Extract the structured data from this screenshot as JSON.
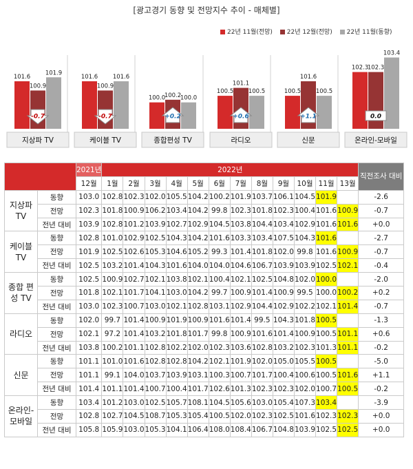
{
  "title": "[광고경기 동향 및 전망지수 추이 - 매체별]",
  "colors": {
    "red": "#d42a2a",
    "darkred": "#963434",
    "gray": "#a8a8a8",
    "highlight": "#ffff00",
    "header": "#d42a2a",
    "side": "#7d7d7d"
  },
  "chart_data": {
    "type": "bar",
    "categories": [
      "지상파 TV",
      "케이블 TV",
      "종합편성 TV",
      "라디오",
      "신문",
      "온라인-모바일"
    ],
    "series": [
      {
        "name": "22년 11월(전망)",
        "values": [
          101.6,
          101.6,
          100.0,
          100.5,
          100.5,
          102.3
        ],
        "labels": [
          "101.6",
          "101.6",
          "100.0",
          "100.5",
          "100.5",
          "102.3"
        ],
        "color": "#d42a2a"
      },
      {
        "name": "22년 12월(전망)",
        "values": [
          100.9,
          100.9,
          100.2,
          101.1,
          101.6,
          102.3
        ],
        "labels": [
          "100.9",
          "100.9",
          "100.2",
          "101.1",
          "101.6",
          "102.3"
        ],
        "color": "#963434"
      },
      {
        "name": "22년 11월(동향)",
        "values": [
          101.9,
          101.6,
          100.0,
          100.5,
          100.5,
          103.4
        ],
        "labels": [
          "101.9",
          "101.6",
          "100.0",
          "100.5",
          "100.5",
          "103.4"
        ],
        "color": "#a8a8a8"
      }
    ],
    "changes": [
      {
        "label": "-0.7",
        "direction": "down"
      },
      {
        "label": "-0.7",
        "direction": "down"
      },
      {
        "label": "+0.2",
        "direction": "up"
      },
      {
        "label": "+0.6",
        "direction": "up"
      },
      {
        "label": "+1.1",
        "direction": "up"
      },
      {
        "label": "0.0",
        "direction": "none"
      }
    ]
  },
  "table": {
    "corner": "",
    "year2021": "2021년",
    "year2022": "2022년",
    "last_header": "직전조사 대비",
    "months": [
      "12월",
      "1월",
      "2월",
      "3월",
      "4월",
      "5월",
      "6월",
      "7월",
      "8월",
      "9월",
      "10월",
      "11월",
      "13월"
    ],
    "groups": [
      {
        "name": "지상파 TV",
        "rows": [
          {
            "label": "동향",
            "values": [
              "103.0",
              "102.8",
              "102.3",
              "102.0",
              "105.5",
              "104.2",
              "100.2",
              "101.9",
              "103.7",
              "106.1",
              "104.5",
              "101.9",
              ""
            ],
            "hl": [
              11
            ],
            "diff": "-2.6"
          },
          {
            "label": "전망",
            "values": [
              "102.3",
              "101.8",
              "100.9",
              "106.2",
              "103.4",
              "104.2",
              "99.8",
              "102.3",
              "101.8",
              "102.3",
              "100.4",
              "101.6",
              "100.9"
            ],
            "hl": [
              12
            ],
            "diff": "-0.7"
          },
          {
            "label": "전년 대비",
            "values": [
              "103.9",
              "102.8",
              "101.2",
              "103.9",
              "102.7",
              "102.9",
              "104.5",
              "103.8",
              "104.4",
              "103.4",
              "102.9",
              "101.6",
              "101.6"
            ],
            "hl": [
              12
            ],
            "diff": "+0.0"
          }
        ]
      },
      {
        "name": "케이블 TV",
        "rows": [
          {
            "label": "동향",
            "values": [
              "102.8",
              "101.0",
              "102.9",
              "102.5",
              "104.3",
              "104.2",
              "101.6",
              "103.3",
              "103.4",
              "107.5",
              "104.3",
              "101.6",
              ""
            ],
            "hl": [
              11
            ],
            "diff": "-2.7"
          },
          {
            "label": "전망",
            "values": [
              "101.9",
              "102.5",
              "102.6",
              "105.3",
              "104.6",
              "105.2",
              "99.3",
              "101.4",
              "101.8",
              "102.0",
              "99.8",
              "101.6",
              "100.9"
            ],
            "hl": [
              12
            ],
            "diff": "-0.7"
          },
          {
            "label": "전년 대비",
            "values": [
              "102.5",
              "103.2",
              "101.4",
              "104.3",
              "101.6",
              "104.0",
              "104.0",
              "104.6",
              "106.7",
              "103.9",
              "103.9",
              "102.5",
              "102.1"
            ],
            "hl": [
              12
            ],
            "diff": "-0.4"
          }
        ]
      },
      {
        "name": "종합 편성 TV",
        "rows": [
          {
            "label": "동향",
            "values": [
              "102.5",
              "100.9",
              "102.7",
              "102.1",
              "103.8",
              "102.1",
              "100.4",
              "102.1",
              "102.5",
              "104.8",
              "102.0",
              "100.0",
              ""
            ],
            "hl": [
              11
            ],
            "diff": "-2.0"
          },
          {
            "label": "전망",
            "values": [
              "101.8",
              "102.1",
              "101.7",
              "104.1",
              "103.0",
              "104.2",
              "99.7",
              "100.9",
              "101.4",
              "100.9",
              "99.5",
              "100.0",
              "100.2"
            ],
            "hl": [
              12
            ],
            "diff": "+0.2"
          },
          {
            "label": "전년 대비",
            "values": [
              "103.0",
              "102.3",
              "100.7",
              "103.0",
              "102.1",
              "102.8",
              "103.1",
              "102.9",
              "104.4",
              "102.9",
              "102.2",
              "102.1",
              "101.4"
            ],
            "hl": [
              12
            ],
            "diff": "-0.7"
          }
        ]
      },
      {
        "name": "라디오",
        "rows": [
          {
            "label": "동향",
            "values": [
              "102.0",
              "99.7",
              "101.4",
              "100.9",
              "101.9",
              "100.9",
              "101.6",
              "101.4",
              "99.5",
              "104.3",
              "101.8",
              "100.5",
              ""
            ],
            "hl": [
              11
            ],
            "diff": "-1.3"
          },
          {
            "label": "전망",
            "values": [
              "102.1",
              "97.2",
              "101.4",
              "103.2",
              "101.8",
              "101.7",
              "99.8",
              "100.9",
              "101.6",
              "101.4",
              "100.9",
              "100.5",
              "101.1"
            ],
            "hl": [
              12
            ],
            "diff": "+0.6"
          },
          {
            "label": "전년 대비",
            "values": [
              "103.8",
              "100.2",
              "101.1",
              "102.8",
              "102.2",
              "102.0",
              "102.3",
              "103.6",
              "102.8",
              "103.2",
              "102.3",
              "101.3",
              "101.1"
            ],
            "hl": [
              12
            ],
            "diff": "-0.2"
          }
        ]
      },
      {
        "name": "신문",
        "rows": [
          {
            "label": "동향",
            "values": [
              "101.1",
              "101.0",
              "101.6",
              "102.8",
              "102.8",
              "104.2",
              "102.1",
              "101.9",
              "102.0",
              "105.0",
              "105.5",
              "100.5",
              ""
            ],
            "hl": [
              11
            ],
            "diff": "-5.0"
          },
          {
            "label": "전망",
            "values": [
              "101.1",
              "99.1",
              "104.0",
              "103.7",
              "103.9",
              "103.1",
              "100.3",
              "100.7",
              "101.7",
              "100.4",
              "100.6",
              "100.5",
              "101.6"
            ],
            "hl": [
              12
            ],
            "diff": "+1.1"
          },
          {
            "label": "전년 대비",
            "values": [
              "101.4",
              "101.1",
              "101.4",
              "100.7",
              "100.4",
              "101.7",
              "102.6",
              "101.3",
              "102.3",
              "102.3",
              "102.0",
              "100.7",
              "100.5"
            ],
            "hl": [
              12
            ],
            "diff": "-0.2"
          }
        ]
      },
      {
        "name": "온라인- 모바일",
        "rows": [
          {
            "label": "동향",
            "values": [
              "103.4",
              "101.2",
              "103.0",
              "102.5",
              "105.7",
              "108.1",
              "104.5",
              "105.6",
              "103.0",
              "105.4",
              "107.3",
              "103.4",
              ""
            ],
            "hl": [
              11
            ],
            "diff": "-3.9"
          },
          {
            "label": "전망",
            "values": [
              "102.8",
              "102.7",
              "104.5",
              "108.7",
              "105.3",
              "105.4",
              "100.5",
              "102.0",
              "102.3",
              "102.5",
              "101.6",
              "102.3",
              "102.3"
            ],
            "hl": [
              12
            ],
            "diff": "+0.0"
          },
          {
            "label": "전년 대비",
            "values": [
              "105.8",
              "105.9",
              "103.0",
              "105.3",
              "104.1",
              "106.4",
              "108.0",
              "108.4",
              "106.7",
              "104.8",
              "103.9",
              "102.5",
              "102.5"
            ],
            "hl": [
              12
            ],
            "diff": "+0.0"
          }
        ]
      }
    ]
  }
}
